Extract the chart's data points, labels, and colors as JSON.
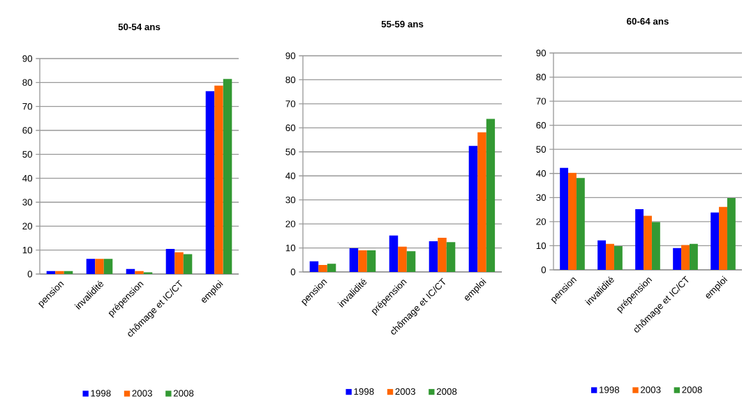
{
  "chart_data": [
    {
      "type": "bar",
      "title": "50-54 ans",
      "categories": [
        "pension",
        "invalidité",
        "prépension",
        "chômage et IC/CT",
        "emploi"
      ],
      "ylim": [
        0,
        90
      ],
      "yticks": [
        0,
        10,
        20,
        30,
        40,
        50,
        60,
        70,
        80,
        90
      ],
      "grid": "y",
      "legend": "bottom",
      "series": [
        {
          "name": "1998",
          "color": "#0000ff",
          "values": [
            1.2,
            6.3,
            2.1,
            10.5,
            76.4
          ]
        },
        {
          "name": "2003",
          "color": "#ff6600",
          "values": [
            1.2,
            6.3,
            1.2,
            9.1,
            78.7
          ]
        },
        {
          "name": "2008",
          "color": "#339933",
          "values": [
            1.2,
            6.3,
            0.7,
            8.3,
            81.5
          ]
        }
      ]
    },
    {
      "type": "bar",
      "title": "55-59 ans",
      "categories": [
        "pension",
        "invalidité",
        "prépension",
        "chômage et IC/CT",
        "emploi"
      ],
      "ylim": [
        0,
        90
      ],
      "yticks": [
        0,
        10,
        20,
        30,
        40,
        50,
        60,
        70,
        80,
        90
      ],
      "grid": "y",
      "legend": "bottom",
      "series": [
        {
          "name": "1998",
          "color": "#0000ff",
          "values": [
            4.4,
            9.9,
            15.2,
            12.8,
            52.5
          ]
        },
        {
          "name": "2003",
          "color": "#ff6600",
          "values": [
            2.9,
            9.0,
            10.5,
            14.2,
            58.1
          ]
        },
        {
          "name": "2008",
          "color": "#339933",
          "values": [
            3.4,
            9.0,
            8.6,
            12.4,
            63.7
          ]
        }
      ]
    },
    {
      "type": "bar",
      "title": "60-64 ans",
      "categories": [
        "pension",
        "invalidité",
        "prépension",
        "chômage et IC/CT",
        "emploi"
      ],
      "ylim": [
        0,
        90
      ],
      "yticks": [
        0,
        10,
        20,
        30,
        40,
        50,
        60,
        70,
        80,
        90
      ],
      "grid": "y",
      "legend": "bottom",
      "series": [
        {
          "name": "1998",
          "color": "#0000ff",
          "values": [
            42.3,
            12.2,
            25.2,
            9.0,
            23.8
          ]
        },
        {
          "name": "2003",
          "color": "#ff6600",
          "values": [
            40.3,
            10.8,
            22.4,
            10.3,
            26.1
          ]
        },
        {
          "name": "2008",
          "color": "#339933",
          "values": [
            38.1,
            9.8,
            19.8,
            10.8,
            29.8
          ]
        }
      ]
    }
  ]
}
